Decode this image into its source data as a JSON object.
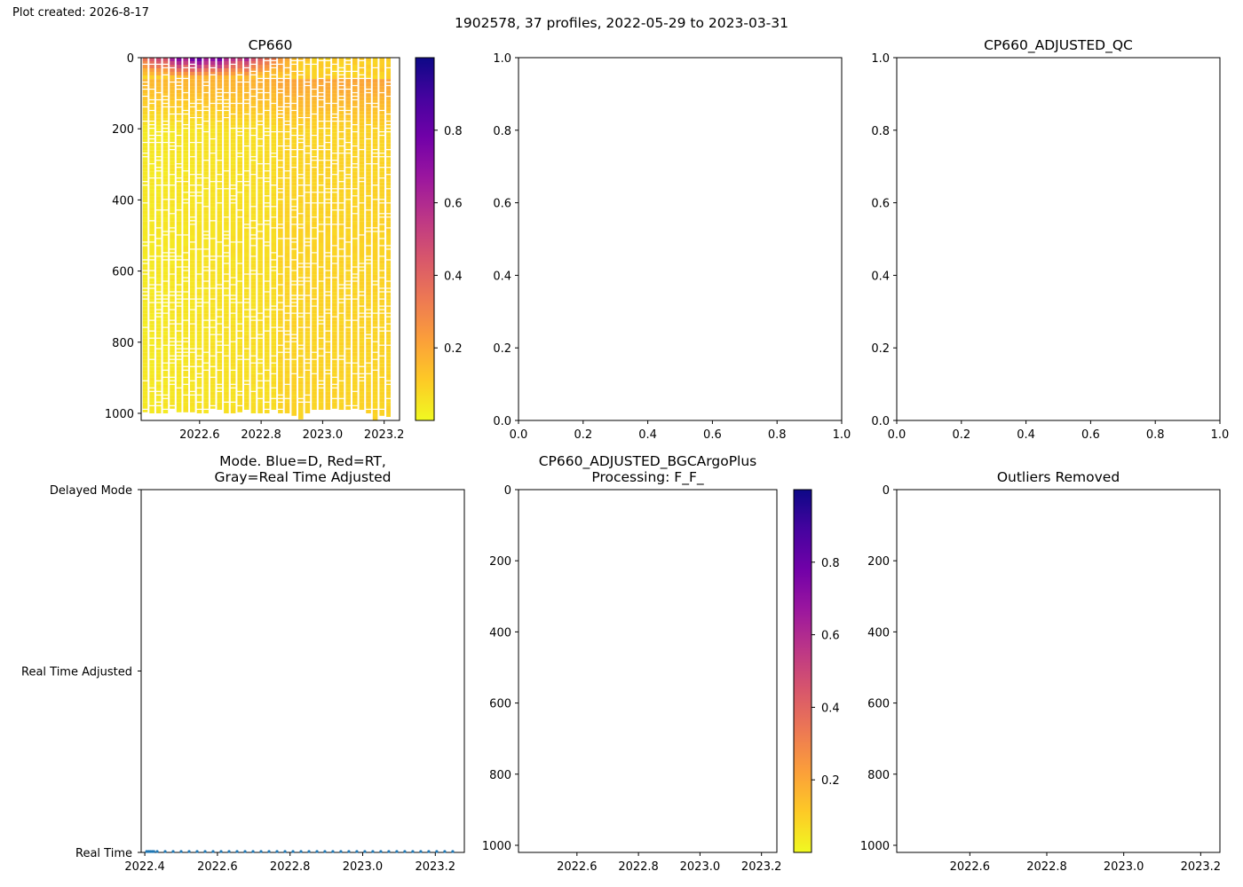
{
  "header": {
    "created": "Plot created: 2026-8-17",
    "suptitle": "1902578, 37 profiles, 2022-05-29 to 2023-03-31"
  },
  "colors": {
    "colormap": [
      "#f0f921",
      "#fdca26",
      "#fb9f3a",
      "#ed7953",
      "#d8576b",
      "#bd3786",
      "#9c179e",
      "#7201a8",
      "#46039f",
      "#0d0887"
    ],
    "mode_series": "#1f77b4",
    "axes": "#000000"
  },
  "chart_data": [
    {
      "id": "cp660",
      "type": "heatmap",
      "title": "CP660",
      "x_ticks": [
        "2022.6",
        "2022.8",
        "2023.0",
        "2023.2"
      ],
      "y_ticks": [
        "0",
        "200",
        "400",
        "600",
        "800",
        "1000"
      ],
      "x_range": [
        2022.41,
        2023.25
      ],
      "y_range": [
        1020,
        0
      ],
      "y_inverted": true,
      "colorbar": {
        "ticks": [
          "0.2",
          "0.4",
          "0.6",
          "0.8"
        ],
        "range": [
          0.0,
          1.0
        ],
        "colormap": "plasma_r"
      },
      "profile_times": [
        2022.412,
        2022.434,
        2022.456,
        2022.478,
        2022.5,
        2022.522,
        2022.544,
        2022.566,
        2022.588,
        2022.61,
        2022.632,
        2022.654,
        2022.676,
        2022.698,
        2022.72,
        2022.742,
        2022.764,
        2022.786,
        2022.808,
        2022.83,
        2022.852,
        2022.874,
        2022.896,
        2022.918,
        2022.94,
        2022.962,
        2022.984,
        2023.006,
        2023.028,
        2023.05,
        2023.072,
        2023.094,
        2023.116,
        2023.138,
        2023.16,
        2023.182,
        2023.204
      ],
      "profile_max_depth": [
        1000,
        1000,
        995,
        995,
        990,
        1000,
        995,
        995,
        1000,
        995,
        990,
        990,
        1000,
        1000,
        995,
        990,
        995,
        1000,
        995,
        990,
        995,
        1000,
        1010,
        1015,
        995,
        990,
        990,
        985,
        985,
        990,
        990,
        985,
        985,
        1000,
        1015,
        1010,
        1005
      ],
      "surface_values": [
        0.35,
        0.45,
        0.5,
        0.45,
        0.62,
        0.7,
        0.6,
        0.75,
        0.8,
        0.65,
        0.7,
        0.75,
        0.6,
        0.55,
        0.5,
        0.6,
        0.45,
        0.4,
        0.35,
        0.3,
        0.25,
        0.2,
        0.15,
        0.12,
        0.12,
        0.1,
        0.1,
        0.1,
        0.1,
        0.1,
        0.1,
        0.1,
        0.12,
        0.1,
        0.1,
        0.12,
        0.1
      ],
      "deep_value": 0.04
    },
    {
      "id": "empty-1",
      "type": "line",
      "title": "",
      "x_ticks": [
        "0.0",
        "0.2",
        "0.4",
        "0.6",
        "0.8",
        "1.0"
      ],
      "y_ticks": [
        "0.0",
        "0.2",
        "0.4",
        "0.6",
        "0.8",
        "1.0"
      ],
      "x_range": [
        0,
        1
      ],
      "y_range": [
        0,
        1
      ],
      "series": []
    },
    {
      "id": "adjusted-qc",
      "type": "line",
      "title": "CP660_ADJUSTED_QC",
      "x_ticks": [
        "0.0",
        "0.2",
        "0.4",
        "0.6",
        "0.8",
        "1.0"
      ],
      "y_ticks": [
        "0.0",
        "0.2",
        "0.4",
        "0.6",
        "0.8",
        "1.0"
      ],
      "x_range": [
        0,
        1
      ],
      "y_range": [
        0,
        1
      ],
      "series": []
    },
    {
      "id": "mode",
      "type": "scatter",
      "title": [
        "Mode. Blue=D, Red=RT,",
        "Gray=Real Time Adjusted"
      ],
      "x_ticks": [
        "2022.4",
        "2022.6",
        "2022.8",
        "2023.0",
        "2023.2"
      ],
      "y_ticks": [
        "Real Time",
        "Real Time Adjusted",
        "Delayed Mode"
      ],
      "x_range": [
        2022.39,
        2023.28
      ],
      "y_categories": [
        "Real Time",
        "Real Time Adjusted",
        "Delayed Mode"
      ],
      "points_x": [
        2022.405,
        2022.41,
        2022.415,
        2022.42,
        2022.425,
        2022.434,
        2022.456,
        2022.478,
        2022.5,
        2022.522,
        2022.544,
        2022.566,
        2022.588,
        2022.61,
        2022.632,
        2022.654,
        2022.676,
        2022.698,
        2022.72,
        2022.742,
        2022.764,
        2022.786,
        2022.808,
        2022.83,
        2022.852,
        2022.874,
        2022.896,
        2022.918,
        2022.94,
        2022.962,
        2022.984,
        2023.006,
        2023.028,
        2023.05,
        2023.072,
        2023.094,
        2023.116,
        2023.138,
        2023.16,
        2023.182,
        2023.204,
        2023.226,
        2023.248
      ],
      "points_y": "Real Time"
    },
    {
      "id": "adjusted-bgc",
      "type": "heatmap",
      "title": [
        "CP660_ADJUSTED_BGCArgoPlus",
        "Processing: F_F_"
      ],
      "x_ticks": [
        "2022.6",
        "2022.8",
        "2023.0",
        "2023.2"
      ],
      "y_ticks": [
        "0",
        "200",
        "400",
        "600",
        "800",
        "1000"
      ],
      "x_range": [
        2022.41,
        2023.25
      ],
      "y_range": [
        1020,
        0
      ],
      "y_inverted": true,
      "colorbar": {
        "ticks": [
          "0.2",
          "0.4",
          "0.6",
          "0.8"
        ],
        "range": [
          0.0,
          1.0
        ],
        "colormap": "plasma_r"
      }
    },
    {
      "id": "outliers",
      "type": "scatter",
      "title": "Outliers Removed",
      "x_ticks": [
        "2022.6",
        "2022.8",
        "2023.0",
        "2023.2"
      ],
      "y_ticks": [
        "0",
        "200",
        "400",
        "600",
        "800",
        "1000"
      ],
      "x_range": [
        2022.41,
        2023.25
      ],
      "y_range": [
        1020,
        0
      ],
      "y_inverted": true,
      "series": []
    }
  ]
}
